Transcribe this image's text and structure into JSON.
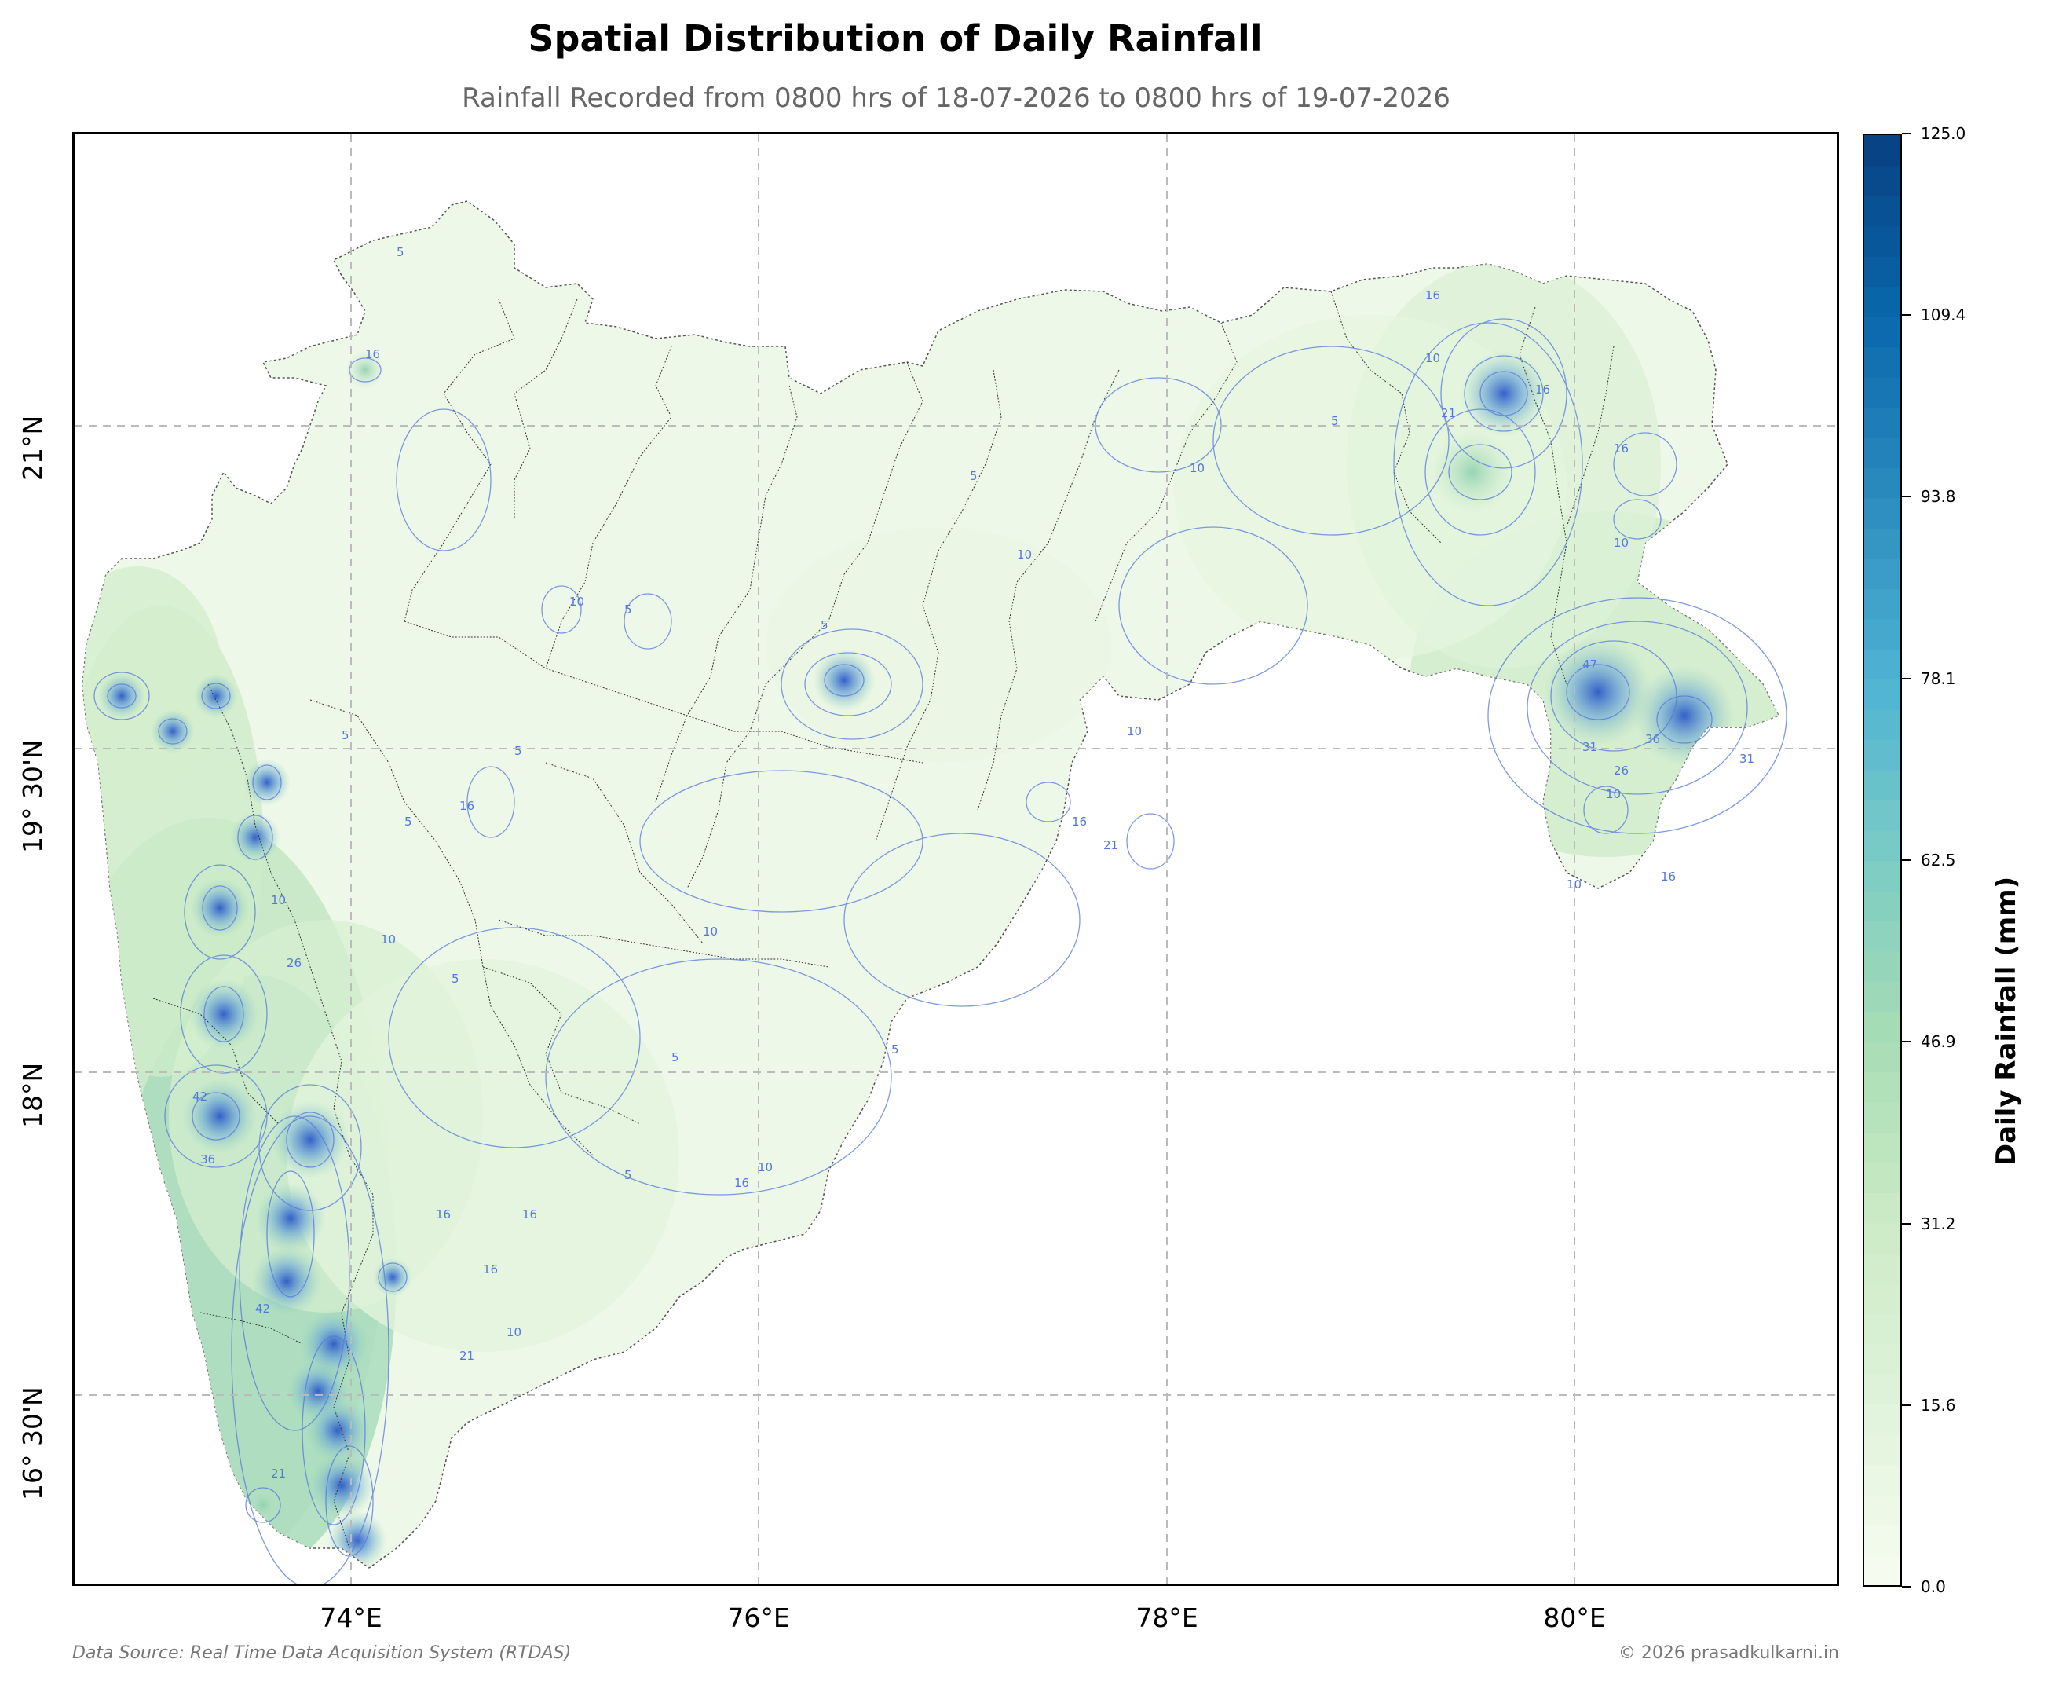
{
  "title": "Spatial Distribution of Daily Rainfall",
  "subtitle": "Rainfall Recorded from 0800 hrs of 18-07-2026 to 0800 hrs of 19-07-2026",
  "axes": {
    "lon_ticks": [
      "74°E",
      "76°E",
      "78°E",
      "80°E"
    ],
    "lat_ticks": [
      "21°N",
      "19° 30'N",
      "18°N",
      "16° 30'N"
    ]
  },
  "colorbar": {
    "title": "Daily Rainfall (mm)",
    "tick_labels": [
      "0.0",
      "15.6",
      "31.2",
      "46.9",
      "62.5",
      "78.1",
      "93.8",
      "109.4",
      "125.0"
    ],
    "range": [
      0,
      125
    ],
    "palette": [
      "#f7fcf0",
      "#e0f3db",
      "#ccebc5",
      "#a8ddb5",
      "#7bccc4",
      "#4eb3d3",
      "#2b8cbe",
      "#0868ac",
      "#084081"
    ]
  },
  "map": {
    "region_fill_low": "#eef8e8",
    "contour_color": "#5577dd",
    "boundary_color": "#333333",
    "grid_color": "#bbbbbb"
  },
  "contour_labels": [
    "5",
    "10",
    "16",
    "21",
    "26",
    "31",
    "36",
    "42",
    "47"
  ],
  "footer": {
    "source": "Data Source: Real Time Data Acquisition System (RTDAS)",
    "copyright": "© 2026 prasadkulkarni.in"
  }
}
